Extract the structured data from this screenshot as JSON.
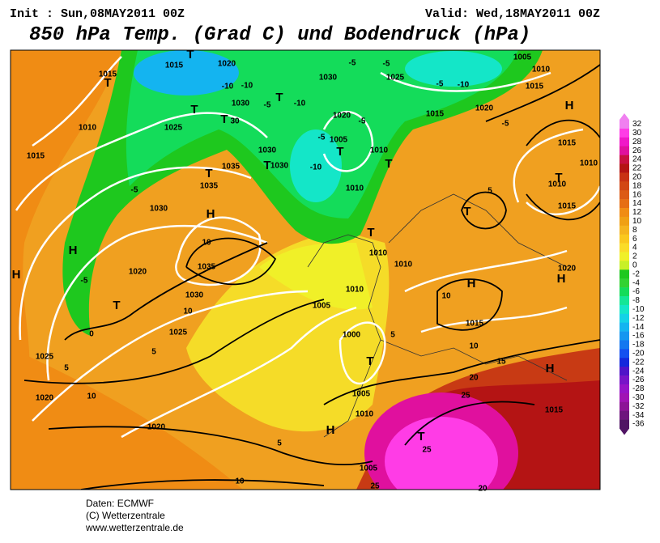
{
  "header": {
    "init": "Init : Sun,08MAY2011 00Z",
    "valid": "Valid: Wed,18MAY2011 00Z",
    "title": "850 hPa Temp. (Grad C) und Bodendruck (hPa)"
  },
  "colorbar": {
    "levels": [
      32,
      30,
      28,
      26,
      24,
      22,
      20,
      18,
      16,
      14,
      12,
      10,
      8,
      6,
      4,
      2,
      0,
      -2,
      -4,
      -6,
      -8,
      -10,
      -12,
      -14,
      -16,
      -18,
      -20,
      -22,
      -24,
      -26,
      -28,
      -30,
      -32,
      -34,
      -36
    ],
    "colors": [
      "#f080f0",
      "#ff3ce6",
      "#f018c8",
      "#e0109e",
      "#c81040",
      "#b41414",
      "#c83214",
      "#d24614",
      "#dc5a14",
      "#e66e14",
      "#f08c14",
      "#f0a014",
      "#f5b41e",
      "#fac81e",
      "#fadc28",
      "#f0f028",
      "#c8f028",
      "#1ec81e",
      "#32d232",
      "#14dc5a",
      "#14e696",
      "#14e6c8",
      "#14d2e6",
      "#14b4f0",
      "#1496f0",
      "#1478f0",
      "#1450f0",
      "#1428dc",
      "#5014c8",
      "#7814c8",
      "#9614c8",
      "#a014b4",
      "#8c1496",
      "#6e147d",
      "#501464"
    ]
  },
  "map_labels": [
    "1015",
    "T",
    "1010",
    "1015",
    "1015",
    "T",
    "1020",
    "-10",
    "-10",
    "1030",
    "T",
    "1025",
    "T",
    "30",
    "-5",
    "T",
    "-10",
    "1030",
    "-5",
    "-5",
    "1025",
    "-5",
    "-10",
    "1005",
    "1010",
    "1015",
    "1020",
    "1015",
    "-5",
    "1020",
    "-5",
    "1005",
    "T",
    "1010",
    "T",
    "1030",
    "1035",
    "1030",
    "T",
    "1035",
    "-5",
    "1030",
    "T",
    "-10",
    "1010",
    "H",
    "10",
    "1035",
    "H",
    "H",
    "-5",
    "1020",
    "T",
    "0",
    "1030",
    "10",
    "1025",
    "5",
    "1025",
    "5",
    "1020",
    "10",
    "1020",
    "5",
    "10",
    "1005",
    "1010",
    "1000",
    "T",
    "5",
    "1005",
    "1010",
    "H",
    "1005",
    "25",
    "20",
    "T",
    "25",
    "25",
    "20",
    "1010",
    "1010",
    "T",
    "T",
    "H",
    "10",
    "1015",
    "10",
    "15",
    "H",
    "1015",
    "1020",
    "H",
    "H",
    "1015",
    "T",
    "1010",
    "1010",
    "1015",
    "5",
    "-5"
  ],
  "footer": [
    "Daten: ECMWF",
    "(C) Wetterzentrale",
    "www.wetterzentrale.de"
  ]
}
